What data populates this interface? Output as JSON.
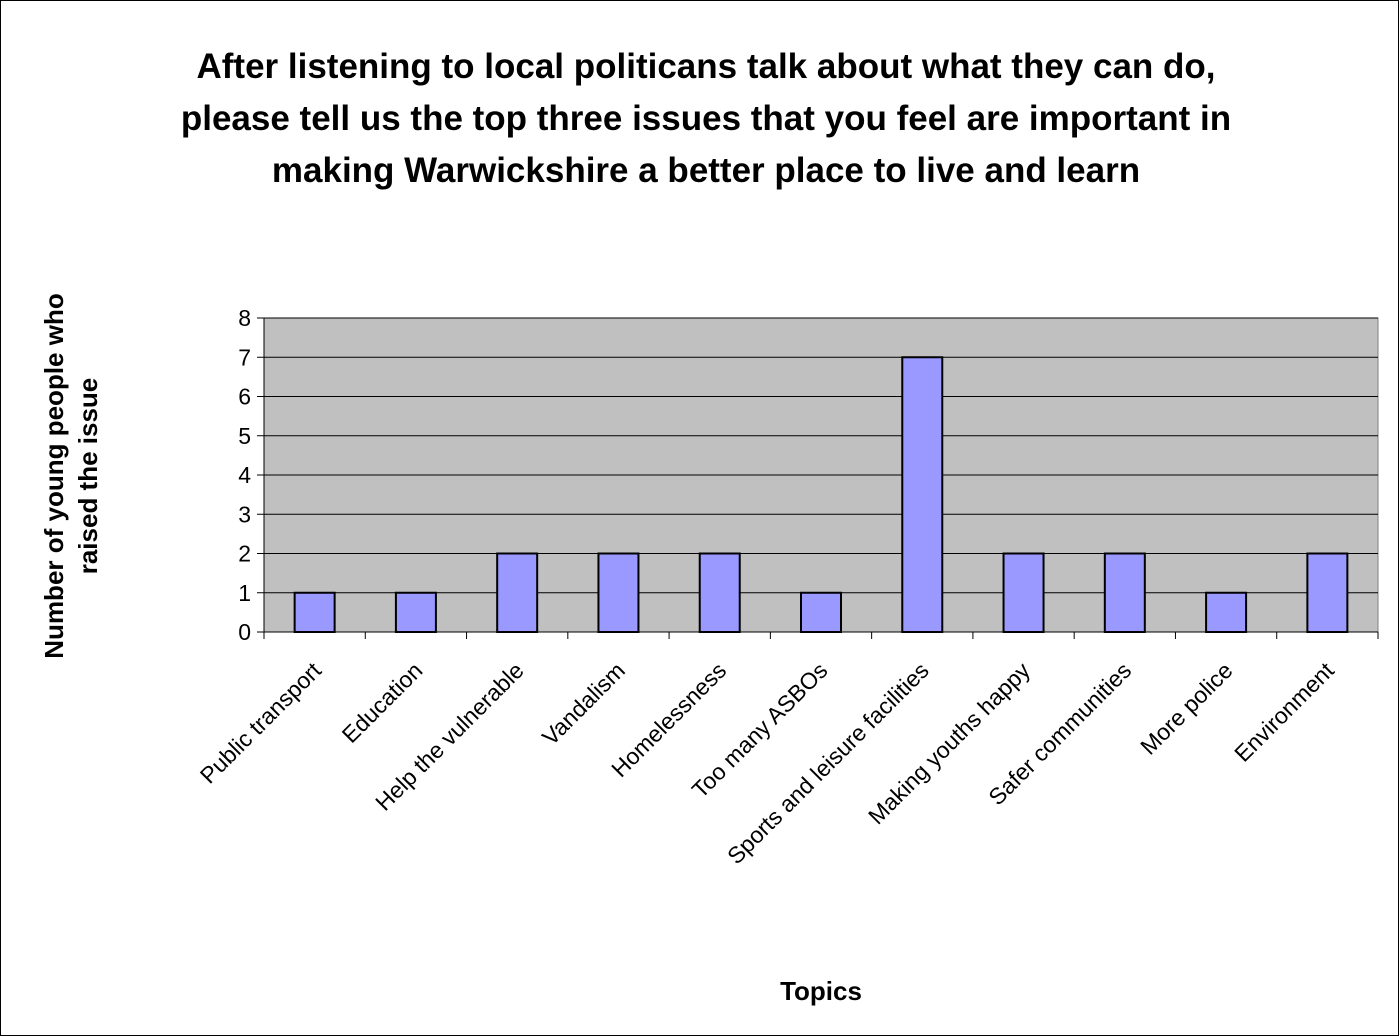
{
  "chart_data": {
    "type": "bar",
    "title": "After listening to local politicans talk about what they can do, please tell us the top three issues that you feel are important in making Warwickshire a better place to live and learn",
    "xlabel": "Topics",
    "ylabel": "Number of young people who raised the issue",
    "categories": [
      "Public transport",
      "Education",
      "Help the vulnerable",
      "Vandalism",
      "Homelessness",
      "Too many ASBOs",
      "Sports and leisure facilities",
      "Making youths happy",
      "Safer communities",
      "More police",
      "Environment"
    ],
    "values": [
      1,
      1,
      2,
      2,
      2,
      1,
      7,
      2,
      2,
      1,
      2
    ],
    "ylim": [
      0,
      8
    ],
    "yticks": [
      0,
      1,
      2,
      3,
      4,
      5,
      6,
      7,
      8
    ],
    "grid": true,
    "legend": "none",
    "colors": {
      "bar_fill": "#9999ff",
      "bar_stroke": "#000000",
      "plot_bg": "#c0c0c0",
      "gridline": "#000000"
    }
  }
}
